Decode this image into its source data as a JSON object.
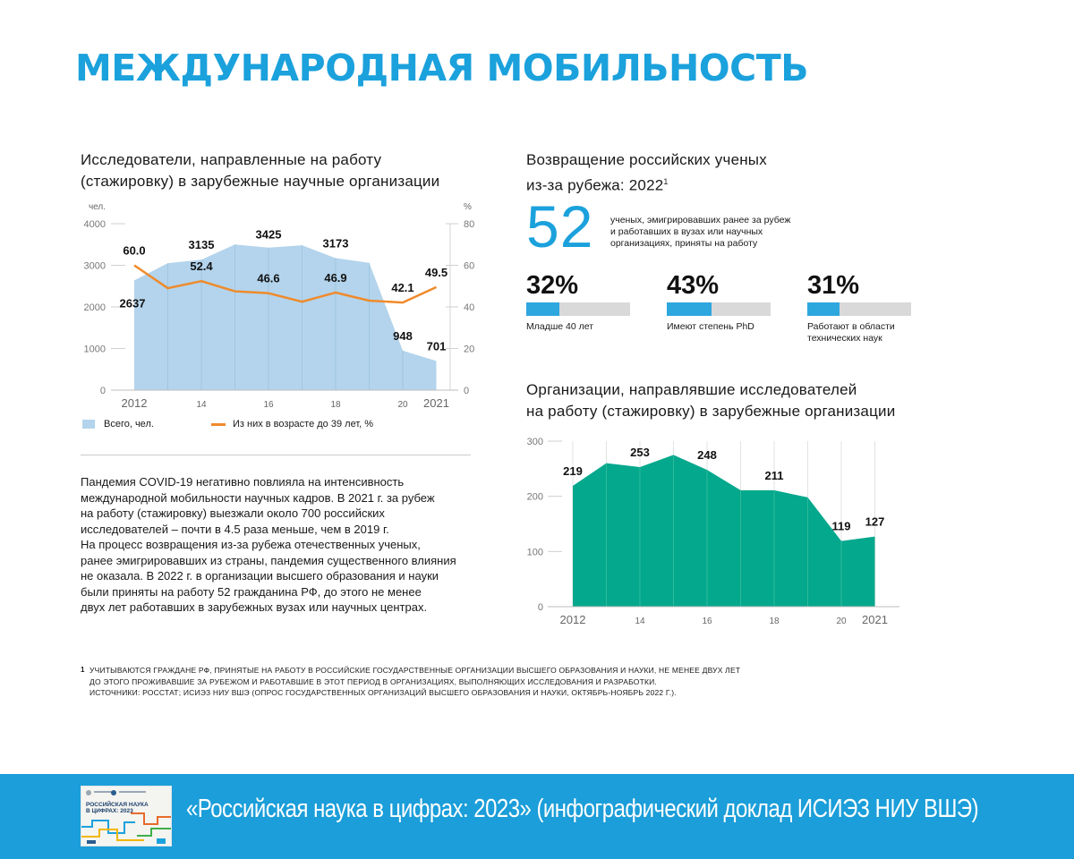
{
  "page": {
    "title": "МЕЖДУНАРОДНАЯ МОБИЛЬНОСТЬ"
  },
  "colors": {
    "accent": "#1ba1dc",
    "area_light_blue": "#b3d4ec",
    "line_orange": "#ef8a2a",
    "teal": "#04a88c",
    "bar_fill": "#2ea6de",
    "bar_track": "#d9d9d9",
    "footer_band": "#1b9ed9"
  },
  "researchers": {
    "title_lines": [
      "Исследователи, направленные на работу",
      "(стажировку) в зарубежные научные организации"
    ],
    "left_unit": "чел.",
    "right_unit": "%",
    "legend": {
      "area": "Всего, чел.",
      "line": "Из них в возрасте до 39 лет, %"
    }
  },
  "returnees": {
    "title_lines": [
      "Возвращение российских ученых",
      "из-за рубежа: 2022"
    ],
    "title_sup": "1",
    "big_number": "52",
    "big_number_desc": [
      "ученых, эмигрировавших ранее за рубеж",
      "и работавших в вузах или научных",
      "организациях, приняты на работу"
    ],
    "stats": [
      {
        "value": "32%",
        "fraction": 0.32,
        "label": [
          "Младше 40 лет"
        ]
      },
      {
        "value": "43%",
        "fraction": 0.43,
        "label": [
          "Имеют степень PhD"
        ]
      },
      {
        "value": "31%",
        "fraction": 0.31,
        "label": [
          "Работают в области",
          "технических наук"
        ]
      }
    ]
  },
  "organizations": {
    "title_lines": [
      "Организации, направлявшие исследователей",
      "на работу (стажировку) в зарубежные организации"
    ]
  },
  "body_text": [
    "Пандемия COVID-19 негативно повлияла на интенсивность",
    "международной мобильности научных кадров. В 2021 г. за рубеж",
    "на работу (стажировку) выезжали около 700 российских",
    "исследователей – почти в 4.5 раза меньше, чем в 2019 г.",
    "На процесс возвращения из-за рубежа отечественных ученых,",
    "ранее эмигрировавших из страны, пандемия существенного влияния",
    "не оказала. В 2022 г. в организации высшего образования и науки",
    "были приняты на работу 52 гражданина РФ, до этого не менее",
    "двух лет работавших в зарубежных вузах или научных центрах."
  ],
  "footnote": {
    "mark": "1",
    "lines": [
      "УЧИТЫВАЮТСЯ ГРАЖДАНЕ РФ, ПРИНЯТЫЕ НА РАБОТУ В РОССИЙСКИЕ ГОСУДАРСТВЕННЫЕ ОРГАНИЗАЦИИ ВЫСШЕГО ОБРАЗОВАНИЯ И НАУКИ, НЕ МЕНЕЕ ДВУХ ЛЕТ",
      "ДО ЭТОГО ПРОЖИВАВШИЕ ЗА РУБЕЖОМ И РАБОТАВШИЕ В ЭТОТ ПЕРИОД В ОРГАНИЗАЦИЯХ, ВЫПОЛНЯЮЩИХ ИССЛЕДОВАНИЯ И РАЗРАБОТКИ.",
      "ИСТОЧНИКИ: РОССТАТ; ИСИЭЗ НИУ ВШЭ (ОПРОС ГОСУДАРСТВЕННЫХ ОРГАНИЗАЦИЙ ВЫСШЕГО ОБРАЗОВАНИЯ И НАУКИ, ОКТЯБРЬ-НОЯБРЬ 2022 Г.)."
    ]
  },
  "footer": {
    "text": "«Российская наука в цифрах: 2023» (инфографический доклад ИСИЭЗ НИУ ВШЭ)",
    "thumbnail_title": [
      "РОССИЙСКАЯ НАУКА",
      "В ЦИФРАХ: 2023"
    ]
  },
  "chart_data": [
    {
      "type": "area",
      "title": "Исследователи, направленные на работу (стажировку) в зарубежные научные организации",
      "x": [
        2012,
        2013,
        2014,
        2015,
        2016,
        2017,
        2018,
        2019,
        2020,
        2021
      ],
      "x_tick_labels": [
        {
          "x": 2012,
          "label": "2012"
        },
        {
          "x": 2014,
          "label": "14"
        },
        {
          "x": 2016,
          "label": "16"
        },
        {
          "x": 2018,
          "label": "18"
        },
        {
          "x": 2020,
          "label": "20"
        },
        {
          "x": 2021,
          "label": "2021"
        }
      ],
      "series": [
        {
          "name": "Всего, чел.",
          "type": "area",
          "axis": "left",
          "values": [
            2637,
            3050,
            3135,
            3500,
            3425,
            3480,
            3173,
            3060,
            948,
            701
          ],
          "labeled": [
            {
              "x": 2012,
              "label": "2637"
            },
            {
              "x": 2014,
              "label": "3135"
            },
            {
              "x": 2016,
              "label": "3425"
            },
            {
              "x": 2018,
              "label": "3173"
            },
            {
              "x": 2020,
              "label": "948"
            },
            {
              "x": 2021,
              "label": "701"
            }
          ]
        },
        {
          "name": "Из них в возрасте до 39 лет, %",
          "type": "line",
          "axis": "right",
          "values": [
            60.0,
            49.0,
            52.4,
            47.5,
            46.6,
            42.5,
            46.9,
            43.0,
            42.1,
            49.5
          ],
          "labeled": [
            {
              "x": 2012,
              "label": "60.0"
            },
            {
              "x": 2014,
              "label": "52.4"
            },
            {
              "x": 2016,
              "label": "46.6"
            },
            {
              "x": 2018,
              "label": "46.9"
            },
            {
              "x": 2020,
              "label": "42.1"
            },
            {
              "x": 2021,
              "label": "49.5"
            }
          ]
        }
      ],
      "ylabel_left": "чел.",
      "ylabel_right": "%",
      "ylim_left": [
        0,
        4000
      ],
      "yticks_left": [
        0,
        1000,
        2000,
        3000,
        4000
      ],
      "ylim_right": [
        0,
        80
      ],
      "yticks_right": [
        0,
        20,
        40,
        60,
        80
      ],
      "grid": "vertical",
      "legend": "bottom"
    },
    {
      "type": "area",
      "title": "Организации, направлявшие исследователей на работу (стажировку) в зарубежные организации",
      "x": [
        2012,
        2013,
        2014,
        2015,
        2016,
        2017,
        2018,
        2019,
        2020,
        2021
      ],
      "x_tick_labels": [
        {
          "x": 2012,
          "label": "2012"
        },
        {
          "x": 2014,
          "label": "14"
        },
        {
          "x": 2016,
          "label": "16"
        },
        {
          "x": 2018,
          "label": "18"
        },
        {
          "x": 2020,
          "label": "20"
        },
        {
          "x": 2021,
          "label": "2021"
        }
      ],
      "series": [
        {
          "values": [
            219,
            260,
            253,
            275,
            248,
            211,
            211,
            198,
            119,
            127
          ],
          "labeled": [
            {
              "x": 2012,
              "label": "219"
            },
            {
              "x": 2014,
              "label": "253"
            },
            {
              "x": 2016,
              "label": "248"
            },
            {
              "x": 2018,
              "label": "211"
            },
            {
              "x": 2020,
              "label": "119"
            },
            {
              "x": 2021,
              "label": "127"
            }
          ]
        }
      ],
      "ylim": [
        0,
        300
      ],
      "yticks": [
        0,
        100,
        200,
        300
      ],
      "grid": "vertical"
    }
  ]
}
